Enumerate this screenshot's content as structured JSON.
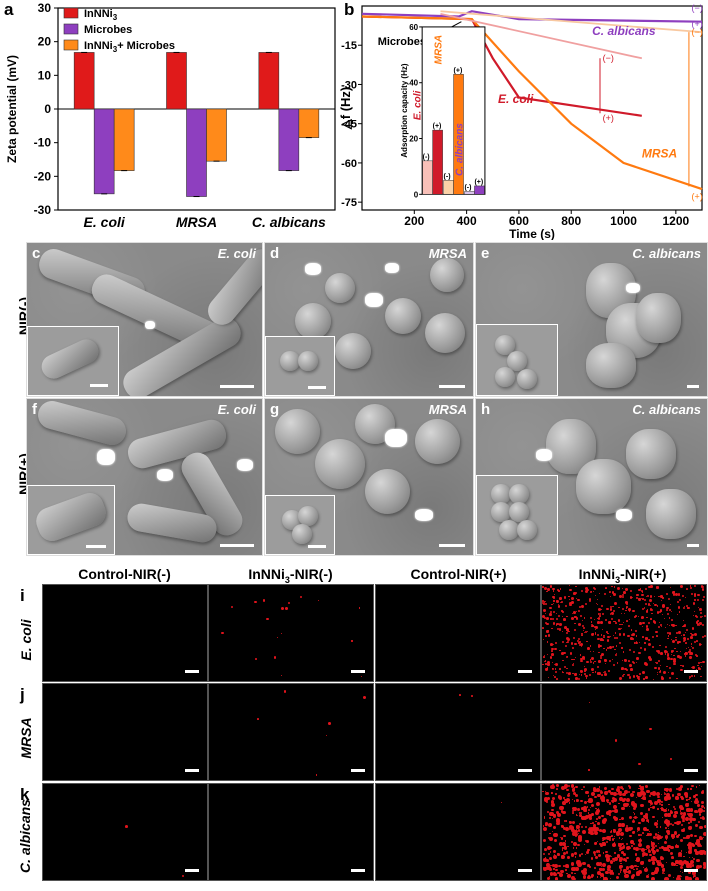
{
  "panel_a": {
    "letter": "a",
    "chart_data": {
      "type": "bar",
      "categories": [
        "E. coli",
        "MRSA",
        "C. albicans"
      ],
      "series": [
        {
          "name": "InNNi3",
          "color": "#e01a1a",
          "values": [
            16.8,
            16.8,
            16.8
          ]
        },
        {
          "name": "Microbes",
          "color": "#8e3fbf",
          "values": [
            -25.2,
            -26.0,
            -18.3
          ]
        },
        {
          "name": "InNNi3+ Microbes",
          "color": "#ff8a1a",
          "values": [
            -18.3,
            -15.5,
            -8.5
          ]
        }
      ],
      "ylabel": "Zeta potential (mV)",
      "ylim": [
        -30,
        30
      ],
      "yticks": [
        "30",
        "20",
        "10",
        "0",
        "-10",
        "-20",
        "-30"
      ]
    },
    "legend": {
      "l1": "InNNi",
      "l1sub": "3",
      "l2": "Microbes",
      "l3a": "InNNi",
      "l3sub": "3",
      "l3b": "+ Microbes"
    }
  },
  "panel_b": {
    "letter": "b",
    "chart_data": {
      "type": "line",
      "xlabel": "Time (s)",
      "ylabel": "△f (Hz)",
      "xlim": [
        0,
        1300
      ],
      "ylim": [
        -78,
        0
      ],
      "xticks": [
        "200",
        "400",
        "600",
        "800",
        "1000",
        "1200"
      ],
      "yticks": [
        "-15",
        "-30",
        "-45",
        "-60",
        "-75"
      ],
      "series": [
        {
          "name": "C. albicans",
          "color": "#8e3fbf",
          "points": [
            [
              0,
              -3
            ],
            [
              370,
              -4
            ],
            [
              420,
              -2
            ],
            [
              600,
              -5
            ],
            [
              1300,
              -6
            ]
          ]
        },
        {
          "name": "E. coli",
          "color": "#d01a2a",
          "points": [
            [
              0,
              -4
            ],
            [
              420,
              -5
            ],
            [
              500,
              -20
            ],
            [
              600,
              -35
            ],
            [
              1070,
              -42
            ]
          ]
        },
        {
          "name": "MRSA",
          "color": "#ff7a10",
          "points": [
            [
              0,
              -4
            ],
            [
              420,
              -5
            ],
            [
              600,
              -25
            ],
            [
              800,
              -45
            ],
            [
              1000,
              -60
            ],
            [
              1300,
              -70
            ]
          ]
        }
      ],
      "annotations": {
        "microbes": "Microbes",
        "minus": "(−)",
        "plus": "(+)"
      }
    },
    "inset": {
      "ylabel": "Adsorption capacity (Hz)",
      "yticks": [
        "60",
        "40",
        "20",
        "0"
      ],
      "ylim": [
        0,
        60
      ],
      "categories": [
        "E. coli",
        "MRSA",
        "C. albicans"
      ],
      "minus_values": [
        12,
        5,
        1
      ],
      "plus_values": [
        23,
        43,
        3
      ],
      "minus_label": "(-)",
      "plus_label": "(+)"
    }
  },
  "sem": {
    "row_labels": [
      "NIR(-)",
      "NIR(+)"
    ],
    "panels": [
      {
        "letter": "c",
        "organism": "E. coli"
      },
      {
        "letter": "d",
        "organism": "MRSA"
      },
      {
        "letter": "e",
        "organism": "C. albicans"
      },
      {
        "letter": "f",
        "organism": "E. coli"
      },
      {
        "letter": "g",
        "organism": "MRSA"
      },
      {
        "letter": "h",
        "organism": "C. albicans"
      }
    ]
  },
  "fluorescence": {
    "columns": [
      "Control-NIR(-)",
      "InNNi3-NIR(-)",
      "Control-NIR(+)",
      "InNNi3-NIR(+)"
    ],
    "rows": [
      {
        "letter": "i",
        "label": "E. coli"
      },
      {
        "letter": "j",
        "label": "MRSA"
      },
      {
        "letter": "k",
        "label": "C. albicans"
      }
    ]
  }
}
